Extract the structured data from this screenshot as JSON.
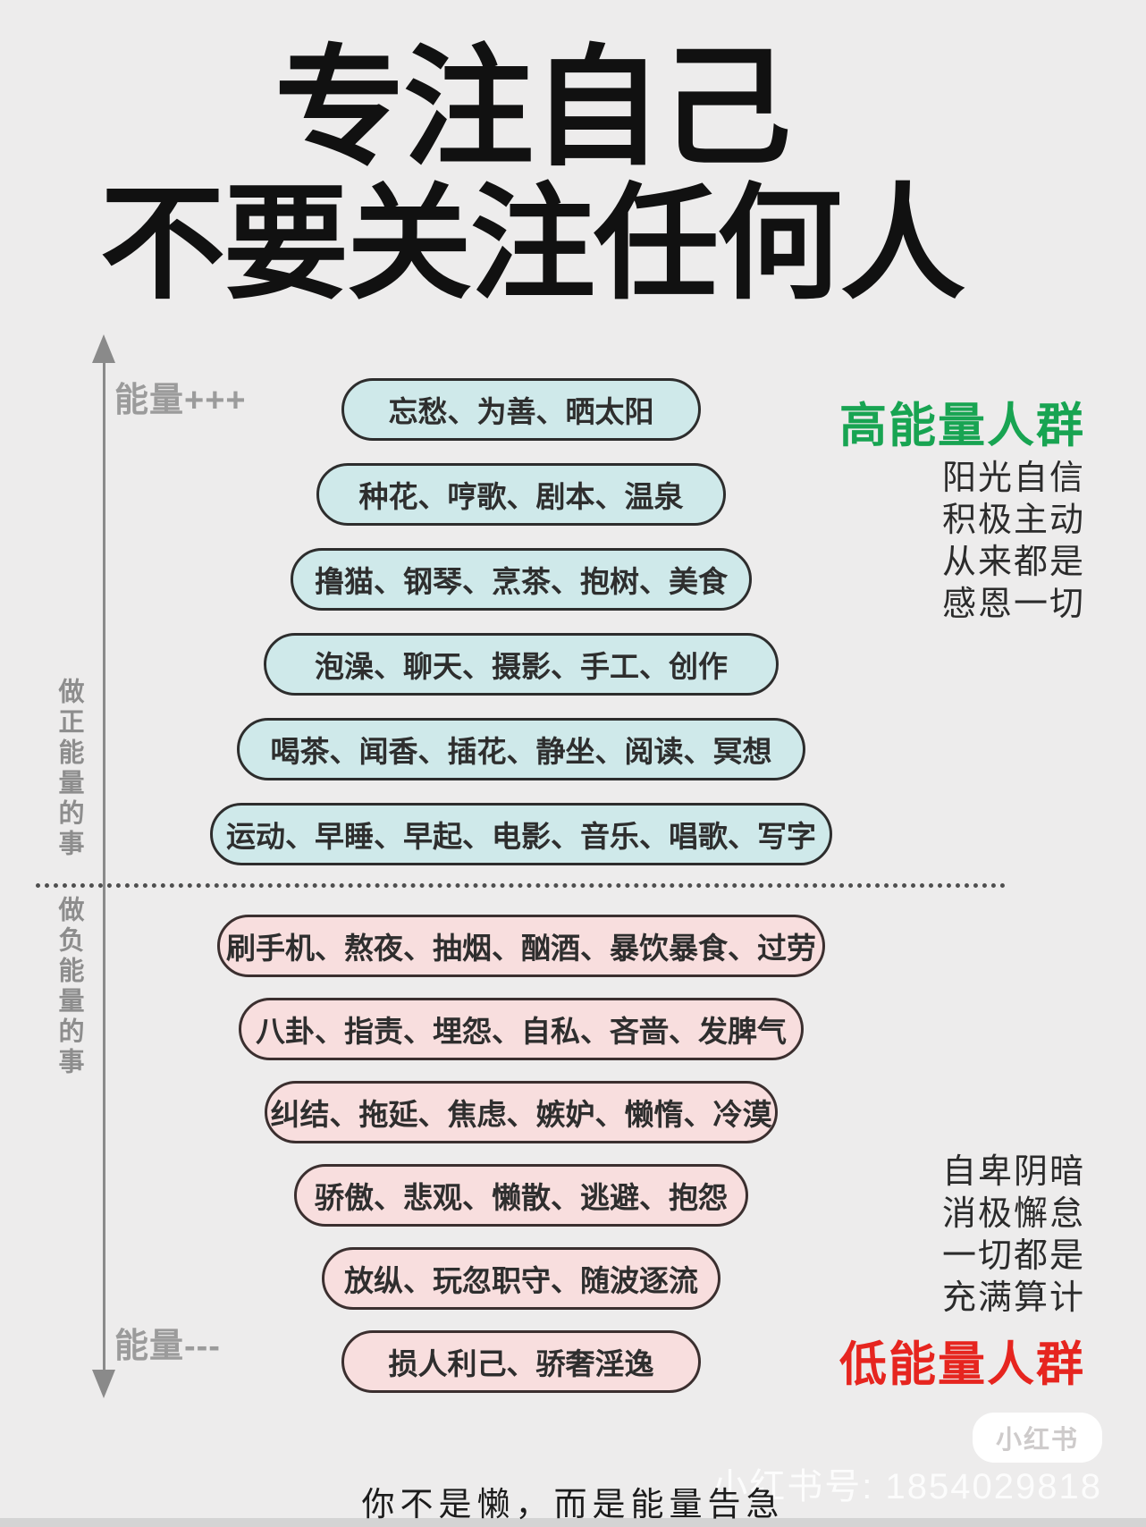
{
  "title": {
    "line1": "专注自己",
    "line2": "不要关注任何人"
  },
  "axis": {
    "energy_plus": "能量+++",
    "energy_minus": "能量---",
    "positive_side": "做正能量的事",
    "negative_side": "做负能量的事"
  },
  "positive_pills": [
    "忘愁、为善、晒太阳",
    "种花、哼歌、剧本、温泉",
    "撸猫、钢琴、烹茶、抱树、美食",
    "泡澡、聊天、摄影、手工、创作",
    "喝茶、闻香、插花、静坐、阅读、冥想",
    "运动、早睡、早起、电影、音乐、唱歌、写字"
  ],
  "negative_pills": [
    "刷手机、熬夜、抽烟、酗酒、暴饮暴食、过劳",
    "八卦、指责、埋怨、自私、吝啬、发脾气",
    "纠结、拖延、焦虑、嫉妒、懒惰、冷漠",
    "骄傲、悲观、懒散、逃避、抱怨",
    "放纵、玩忽职守、随波逐流",
    "损人利己、骄奢淫逸"
  ],
  "high_energy": {
    "heading": "高能量人群",
    "lines": [
      "阳光自信",
      "积极主动",
      "从来都是",
      "感恩一切"
    ]
  },
  "low_energy": {
    "heading": "低能量人群",
    "lines": [
      "自卑阴暗",
      "消极懈怠",
      "一切都是",
      "充满算计"
    ]
  },
  "footer": {
    "slogan": "你不是懒，而是能量告急",
    "badge": "小红书",
    "watermark": "小红书号: 1854029818"
  },
  "colors": {
    "background": "#edecec",
    "positive_pill": "#cfe9ea",
    "negative_pill": "#f8dede",
    "high_energy_green": "#18a452",
    "low_energy_red": "#e6251f",
    "axis_gray": "#8a8a8a"
  }
}
